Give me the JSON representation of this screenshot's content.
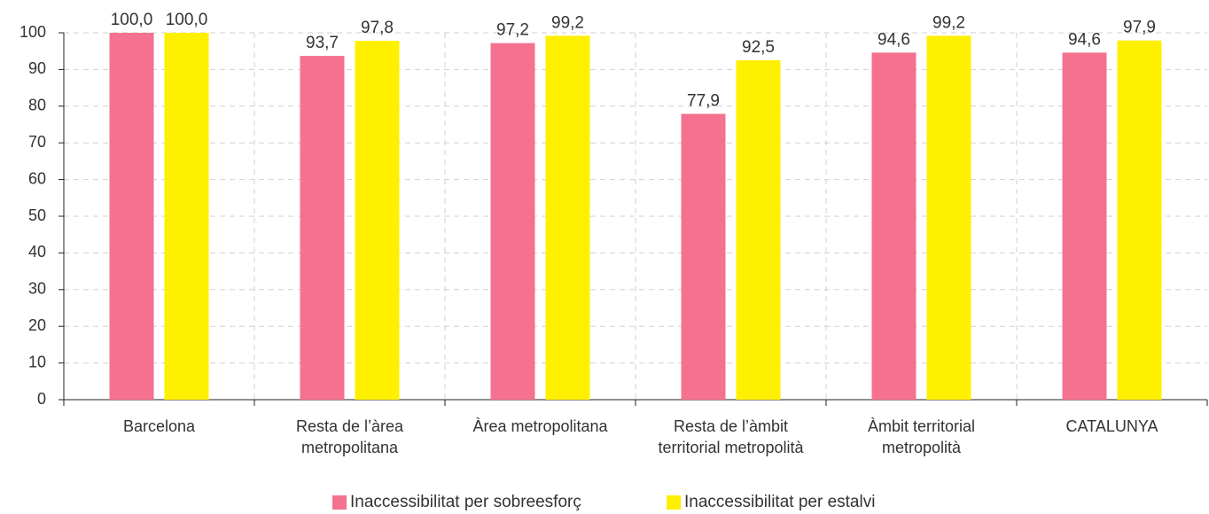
{
  "chart_data": {
    "type": "bar",
    "categories": [
      "Barcelona",
      "Resta de l’àrea metropolitana",
      "Àrea metropolitana",
      "Resta de l’àmbit territorial metropolità",
      "Àmbit territorial metropolità",
      "CATALUNYA"
    ],
    "series": [
      {
        "name": "Inaccessibilitat per sobreesforç",
        "color": "#f4718f",
        "values": [
          100,
          93.7,
          97.2,
          77.9,
          94.6,
          94.6
        ],
        "value_labels": [
          "100,0",
          "93,7",
          "97,2",
          "77,9",
          "94,6",
          "94,6"
        ]
      },
      {
        "name": "Inaccessibilitat per estalvi",
        "color": "#fff000",
        "values": [
          100,
          97.8,
          99.2,
          92.5,
          99.2,
          97.9
        ],
        "value_labels": [
          "100,0",
          "97,8",
          "99,2",
          "92,5",
          "99,2",
          "97,9"
        ]
      }
    ],
    "ylim": [
      0,
      100
    ],
    "yticks": [
      0,
      10,
      20,
      30,
      40,
      50,
      60,
      70,
      80,
      90,
      100
    ],
    "grid": true,
    "legend": "bottom"
  }
}
